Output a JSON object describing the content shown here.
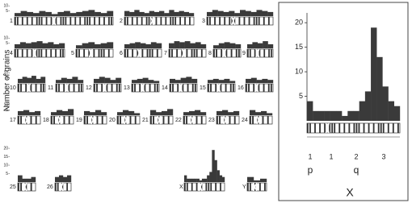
{
  "chart_data": [
    {
      "type": "panels",
      "y_label": "Number of grains",
      "color": "#3a3a3a",
      "rows": [
        {
          "ylim": [
            0,
            11
          ],
          "yticks": [
            5,
            10
          ],
          "panels": [
            {
              "label": "1",
              "values": [
                3,
                5,
                4,
                3,
                5,
                4,
                2,
                4,
                5,
                3,
                4,
                5,
                6,
                4,
                3,
                5
              ]
            },
            {
              "label": "2",
              "values": [
                5,
                4,
                6,
                4,
                3,
                5,
                4,
                5,
                3,
                6,
                4,
                5,
                4,
                3
              ]
            },
            {
              "label": "3",
              "values": [
                4,
                6,
                5,
                4,
                5,
                3,
                6,
                5,
                4,
                6,
                5,
                4
              ]
            }
          ]
        },
        {
          "ylim": [
            0,
            11
          ],
          "yticks": [
            5,
            10
          ],
          "panels": [
            {
              "label": "4",
              "values": [
                4,
                6,
                5,
                6,
                7,
                5,
                6,
                4,
                5
              ]
            },
            {
              "label": "5",
              "values": [
                3,
                5,
                6,
                4,
                5,
                6
              ]
            },
            {
              "label": "6",
              "values": [
                4,
                5,
                6,
                5,
                4,
                6,
                5
              ]
            },
            {
              "label": "7",
              "values": [
                5,
                7,
                6,
                7,
                5,
                6,
                4
              ]
            },
            {
              "label": "8",
              "values": [
                3,
                5,
                6,
                5,
                4
              ]
            },
            {
              "label": "9",
              "values": [
                4,
                6,
                5,
                7,
                4
              ]
            }
          ]
        },
        {
          "ylim": [
            0,
            11
          ],
          "yticks": [
            5,
            10
          ],
          "panels": [
            {
              "label": "10",
              "values": [
                4,
                6,
                5,
                7,
                4,
                6
              ]
            },
            {
              "label": "11",
              "values": [
                3,
                5,
                4,
                6,
                3
              ]
            },
            {
              "label": "12",
              "values": [
                4,
                6,
                5,
                3,
                5
              ]
            },
            {
              "label": "13",
              "values": [
                3,
                4,
                5,
                3,
                2
              ]
            },
            {
              "label": "14",
              "values": [
                4,
                3,
                5,
                6,
                4
              ]
            },
            {
              "label": "15",
              "values": [
                3,
                4,
                3,
                4,
                2
              ]
            },
            {
              "label": "16",
              "values": [
                4,
                5,
                3,
                4,
                3
              ]
            }
          ]
        },
        {
          "ylim": [
            0,
            11
          ],
          "yticks": [
            5,
            10
          ],
          "panels": [
            {
              "label": "17",
              "values": [
                4,
                5,
                3,
                4
              ]
            },
            {
              "label": "18",
              "values": [
                3,
                5,
                4,
                6
              ]
            },
            {
              "label": "19",
              "values": [
                4,
                3,
                5,
                3
              ]
            },
            {
              "label": "20",
              "values": [
                3,
                5,
                4,
                2
              ]
            },
            {
              "label": "21",
              "values": [
                5,
                3,
                4,
                6
              ]
            },
            {
              "label": "22",
              "values": [
                3,
                4,
                5,
                3
              ]
            },
            {
              "label": "23",
              "values": [
                4,
                5,
                3,
                4
              ]
            },
            {
              "label": "24",
              "values": [
                5,
                3,
                4,
                2
              ]
            }
          ]
        },
        {
          "ylim": [
            0,
            21
          ],
          "yticks": [
            5,
            10,
            15,
            20
          ],
          "panels": [
            {
              "label": "25",
              "values": [
                4,
                2,
                2,
                3
              ]
            },
            {
              "label": "26",
              "values": [
                3,
                4,
                3,
                4
              ]
            },
            {
              "label": "X",
              "values": [
                4,
                2,
                2,
                2,
                2,
                2,
                1,
                2,
                2,
                4,
                6,
                19,
                13,
                7,
                4,
                3
              ]
            },
            {
              "label": "Y",
              "values": [
                3,
                1,
                2
              ]
            }
          ]
        }
      ]
    },
    {
      "type": "bar",
      "title": "X",
      "color": "#3a3a3a",
      "ylim": [
        0,
        22
      ],
      "yticks": [
        5,
        10,
        15,
        20
      ],
      "values": [
        4,
        2,
        2,
        2,
        2,
        2,
        1,
        2,
        2,
        4,
        6,
        19,
        13,
        7,
        4,
        3
      ],
      "region_labels": [
        "1",
        "1",
        "2",
        "3"
      ],
      "arm_labels": [
        "p",
        "q"
      ]
    }
  ]
}
